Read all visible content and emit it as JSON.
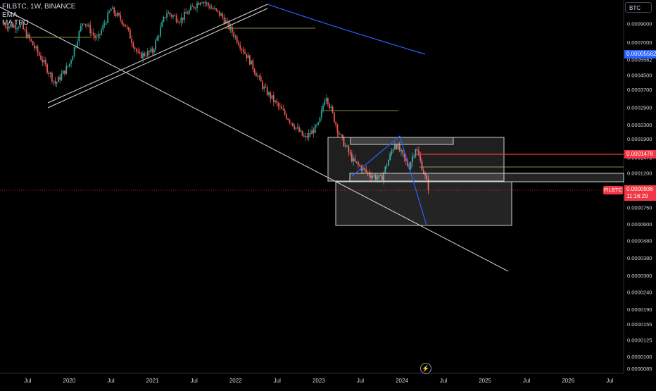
{
  "legend": {
    "symbol_line": "FILBTC, 1W, BINANCE",
    "indicator_1": "EMA",
    "indicator_2": "MA TPO"
  },
  "currency_button": "BTC",
  "symbol_tag": "FILBTC",
  "countdown": "11:16:29",
  "price_tags": {
    "blue_level": "0.00005562",
    "red_level": "0.0001478",
    "last_price": "0.0000936"
  },
  "colors": {
    "background": "#000000",
    "up_candle": "#26a69a",
    "down_candle": "#ef5350",
    "trendline": "#d9d9d9",
    "blue_line": "#2962ff",
    "red_line": "#f23645",
    "olive_line": "#8c8c3c",
    "text": "#d1d4dc"
  },
  "chart_data": {
    "type": "candlestick",
    "symbol": "FILBTC",
    "timeframe": "1W",
    "exchange": "BINANCE",
    "y_scale": "log",
    "y_ticks": [
      "0.0009000",
      "0.0007000",
      "0.0005562",
      "0.0004500",
      "0.0003700",
      "0.0002900",
      "0.0002300",
      "0.0001900",
      "0.0001478",
      "0.0001200",
      "0.0000936",
      "0.0000750",
      "0.0000600",
      "0.0000480",
      "0.0000380",
      "0.0000300",
      "0.0000240",
      "0.0000190",
      "0.0000155",
      "0.0000125",
      "0.0000100",
      "0.0000085"
    ],
    "x_ticks": [
      "Jul",
      "2020",
      "Jul",
      "2021",
      "Jul",
      "2022",
      "Jul",
      "2023",
      "Jul",
      "2024",
      "Jul",
      "2025",
      "Jul",
      "2026",
      "Jul"
    ],
    "x_range": [
      "2019-03",
      "2026-09"
    ],
    "y_range": [
      8.2e-06,
      0.00115
    ],
    "last_price": 9.36e-05,
    "close_series": [
      {
        "date": "2019-06",
        "close": 0.00088
      },
      {
        "date": "2019-09",
        "close": 0.00056
      },
      {
        "date": "2019-11",
        "close": 0.0004
      },
      {
        "date": "2020-01",
        "close": 0.00052
      },
      {
        "date": "2020-03",
        "close": 0.00095
      },
      {
        "date": "2020-05",
        "close": 0.00072
      },
      {
        "date": "2020-07",
        "close": 0.0011
      },
      {
        "date": "2020-09",
        "close": 0.0009
      },
      {
        "date": "2020-11",
        "close": 0.00058
      },
      {
        "date": "2021-01",
        "close": 0.00062
      },
      {
        "date": "2021-03",
        "close": 0.00105
      },
      {
        "date": "2021-05",
        "close": 0.00095
      },
      {
        "date": "2021-08",
        "close": 0.00125
      },
      {
        "date": "2021-11",
        "close": 0.001
      },
      {
        "date": "2022-01",
        "close": 0.00075
      },
      {
        "date": "2022-03",
        "close": 0.00055
      },
      {
        "date": "2022-05",
        "close": 0.00038
      },
      {
        "date": "2022-07",
        "close": 0.0003
      },
      {
        "date": "2022-09",
        "close": 0.00024
      },
      {
        "date": "2022-11",
        "close": 0.00019
      },
      {
        "date": "2023-01",
        "close": 0.00023
      },
      {
        "date": "2023-02",
        "close": 0.00035
      },
      {
        "date": "2023-04",
        "close": 0.0002
      },
      {
        "date": "2023-06",
        "close": 0.00014
      },
      {
        "date": "2023-08",
        "close": 0.00012
      },
      {
        "date": "2023-10",
        "close": 0.00011
      },
      {
        "date": "2023-12",
        "close": 0.00018
      },
      {
        "date": "2024-02",
        "close": 0.00013
      },
      {
        "date": "2024-03",
        "close": 0.00017
      },
      {
        "date": "2024-05",
        "close": 9.36e-05
      }
    ],
    "horizontal_levels": [
      {
        "price": 5.562e-05,
        "color": "blue"
      },
      {
        "price": 0.0001478,
        "color": "red"
      },
      {
        "price": 9.36e-05,
        "color": "red",
        "style": "dotted"
      }
    ]
  }
}
